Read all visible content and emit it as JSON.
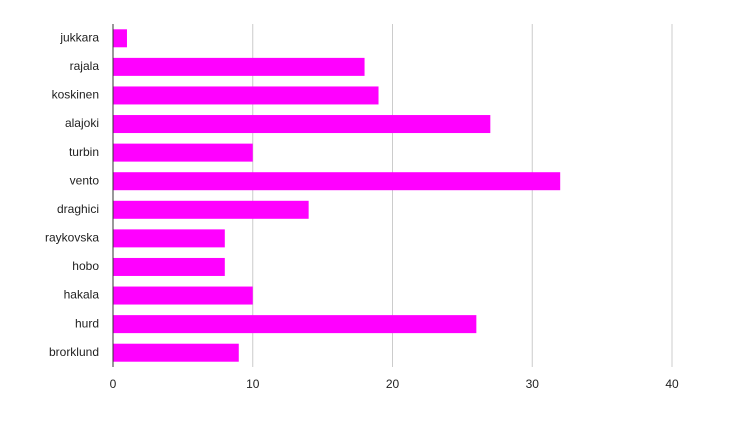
{
  "chart_data": {
    "type": "hbar",
    "categories": [
      "jukkara",
      "rajala",
      "koskinen",
      "alajoki",
      "turbin",
      "vento",
      "draghici",
      "raykovska",
      "hobo",
      "hakala",
      "hurd",
      "brorklund"
    ],
    "values": [
      1,
      18,
      19,
      27,
      10,
      32,
      14,
      8,
      8,
      10,
      26,
      9
    ],
    "color": "#ff00ff",
    "xlim": [
      0,
      40
    ],
    "xticks": [
      0,
      10,
      20,
      30,
      40
    ],
    "grid": true
  }
}
